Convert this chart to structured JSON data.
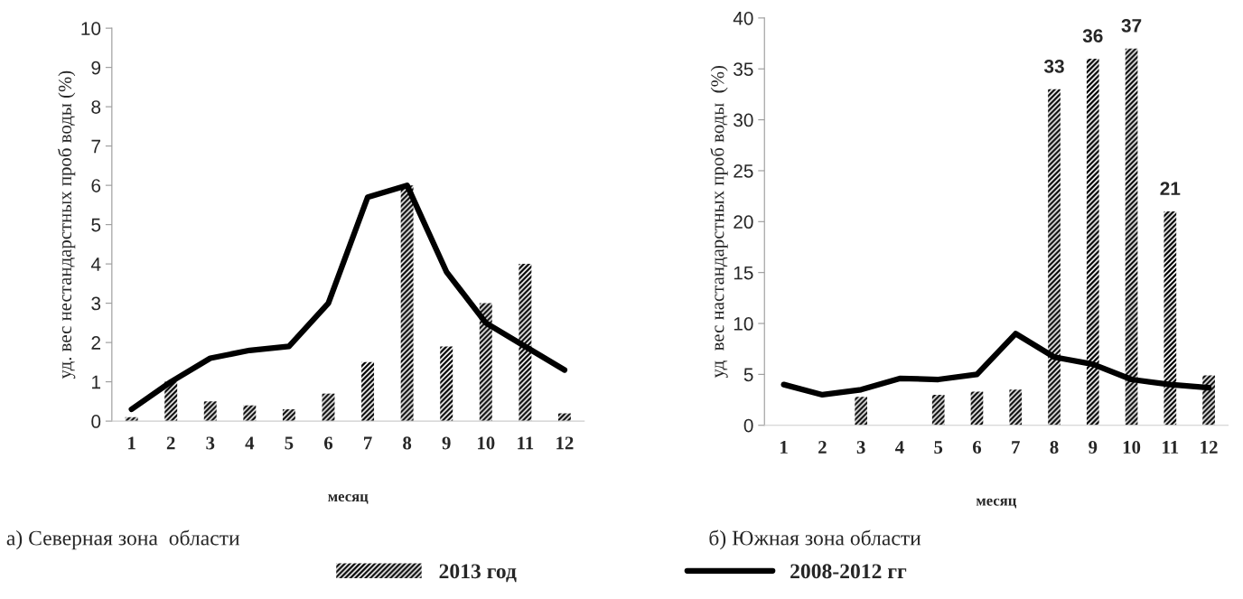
{
  "chart_data": [
    {
      "type": "bar",
      "categories": [
        "1",
        "2",
        "3",
        "4",
        "5",
        "6",
        "7",
        "8",
        "9",
        "10",
        "11",
        "12"
      ],
      "xlabel": "месяц",
      "ylabel": "уд. вес нестандарстных проб воды (%)",
      "ylim": [
        0,
        10
      ],
      "yticks": [
        0,
        1,
        2,
        3,
        4,
        5,
        6,
        7,
        8,
        9,
        10
      ],
      "legend": "bottom",
      "annotations": [
        "а) Северная зона  области"
      ],
      "series": [
        {
          "name": "2013 год",
          "color": "#000000",
          "values": [
            0.1,
            1,
            0.5,
            0.4,
            0.3,
            0.7,
            1.5,
            6,
            1.9,
            3,
            4,
            0.2
          ]
        },
        {
          "name": "2008-2012 гг",
          "type": "line",
          "color": "#000000",
          "values": [
            0.3,
            1.0,
            1.6,
            1.8,
            1.9,
            3.0,
            5.7,
            6.0,
            3.8,
            2.5,
            1.9,
            1.3
          ]
        }
      ]
    },
    {
      "type": "bar",
      "categories": [
        "1",
        "2",
        "3",
        "4",
        "5",
        "6",
        "7",
        "8",
        "9",
        "10",
        "11",
        "12"
      ],
      "xlabel": "месяц",
      "ylabel": "уд  вес настандарстных проб воды  (%)",
      "ylim": [
        0,
        40
      ],
      "yticks": [
        0,
        5,
        10,
        15,
        20,
        25,
        30,
        35,
        40
      ],
      "annotations": [
        "б) Южная зона области"
      ],
      "series": [
        {
          "color": "#000000",
          "values": [
            null,
            null,
            2.8,
            null,
            3,
            3.3,
            3.5,
            33,
            36,
            37,
            21,
            4.9
          ],
          "value_labels": [
            null,
            null,
            null,
            null,
            null,
            null,
            null,
            "33",
            "36",
            "37",
            "21",
            null
          ]
        },
        {
          "type": "line",
          "color": "#000000",
          "values": [
            4,
            3,
            3.5,
            4.6,
            4.5,
            5,
            9,
            6.7,
            6,
            4.5,
            4,
            3.7
          ]
        }
      ]
    }
  ]
}
